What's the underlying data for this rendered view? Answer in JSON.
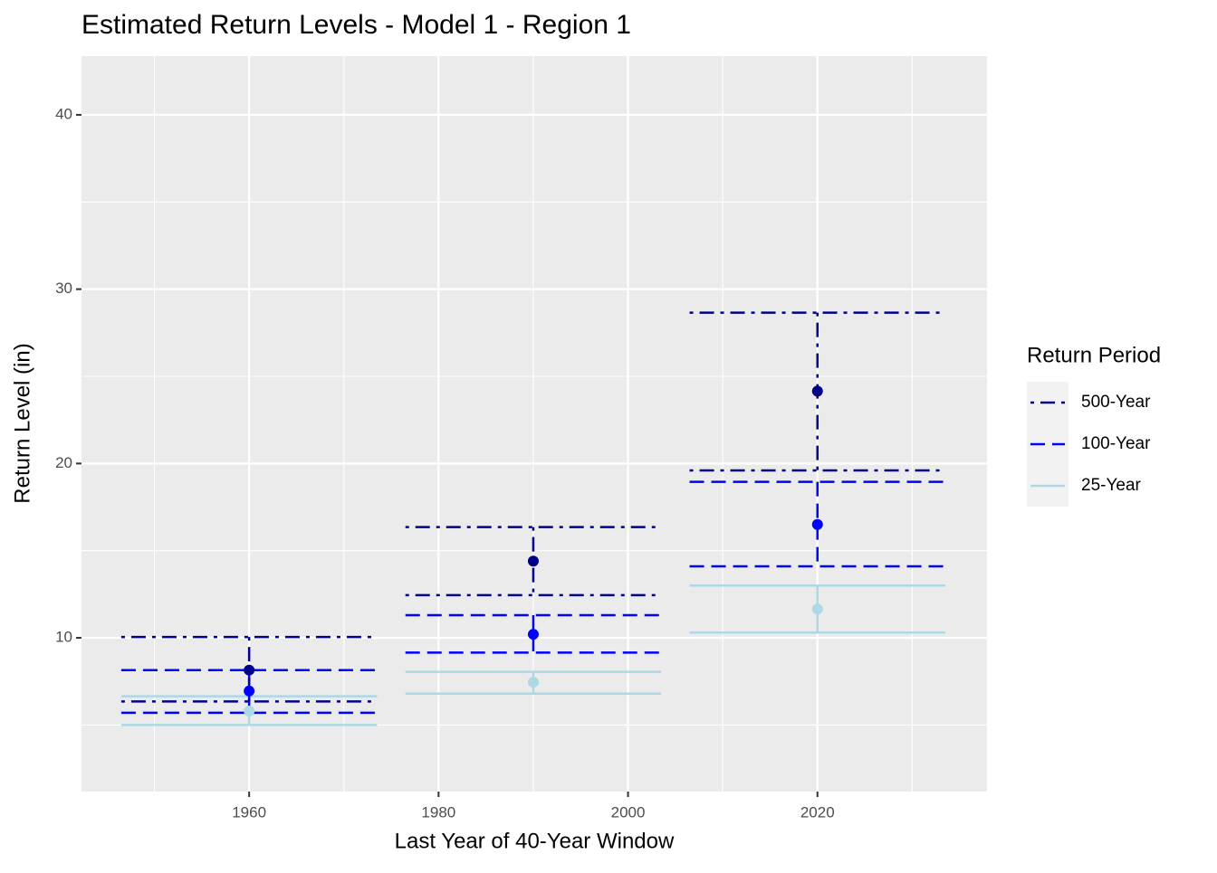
{
  "chart_data": {
    "type": "errorbar",
    "title": "Estimated Return Levels - Model 1 - Region 1",
    "x_label": "Last Year of 40-Year Window",
    "y_label": "Return Level (in)",
    "legend_title": "Return Period",
    "legend_position": "right",
    "x": [
      1960,
      1990,
      2020
    ],
    "series": [
      {
        "name": "500-Year",
        "color": "#00008B",
        "linetype": "dotdash",
        "values": [
          8.15,
          14.4,
          24.15
        ],
        "lower": [
          6.35,
          12.45,
          19.6
        ],
        "upper": [
          10.05,
          16.35,
          28.65
        ]
      },
      {
        "name": "100-Year",
        "color": "#0000FF",
        "linetype": "dashed",
        "values": [
          6.95,
          10.2,
          16.5
        ],
        "lower": [
          5.7,
          9.15,
          14.1
        ],
        "upper": [
          8.15,
          11.3,
          18.95
        ]
      },
      {
        "name": "25-Year",
        "color": "#ADD8E6",
        "linetype": "solid",
        "values": [
          5.8,
          7.45,
          11.65
        ],
        "lower": [
          5.0,
          6.8,
          10.3
        ],
        "upper": [
          6.65,
          8.05,
          13.0
        ]
      }
    ],
    "xlim": [
      1942.3,
      2037.9
    ],
    "xticks": [
      1960,
      1980,
      2000,
      2020
    ],
    "x_minor_ticks": [
      1950,
      1970,
      1990,
      2010,
      2030
    ],
    "ylim": [
      1.18,
      43.37
    ],
    "yticks": [
      10,
      20,
      30,
      40
    ],
    "y_minor_ticks": [
      5,
      15,
      25,
      35
    ],
    "grid": true
  }
}
